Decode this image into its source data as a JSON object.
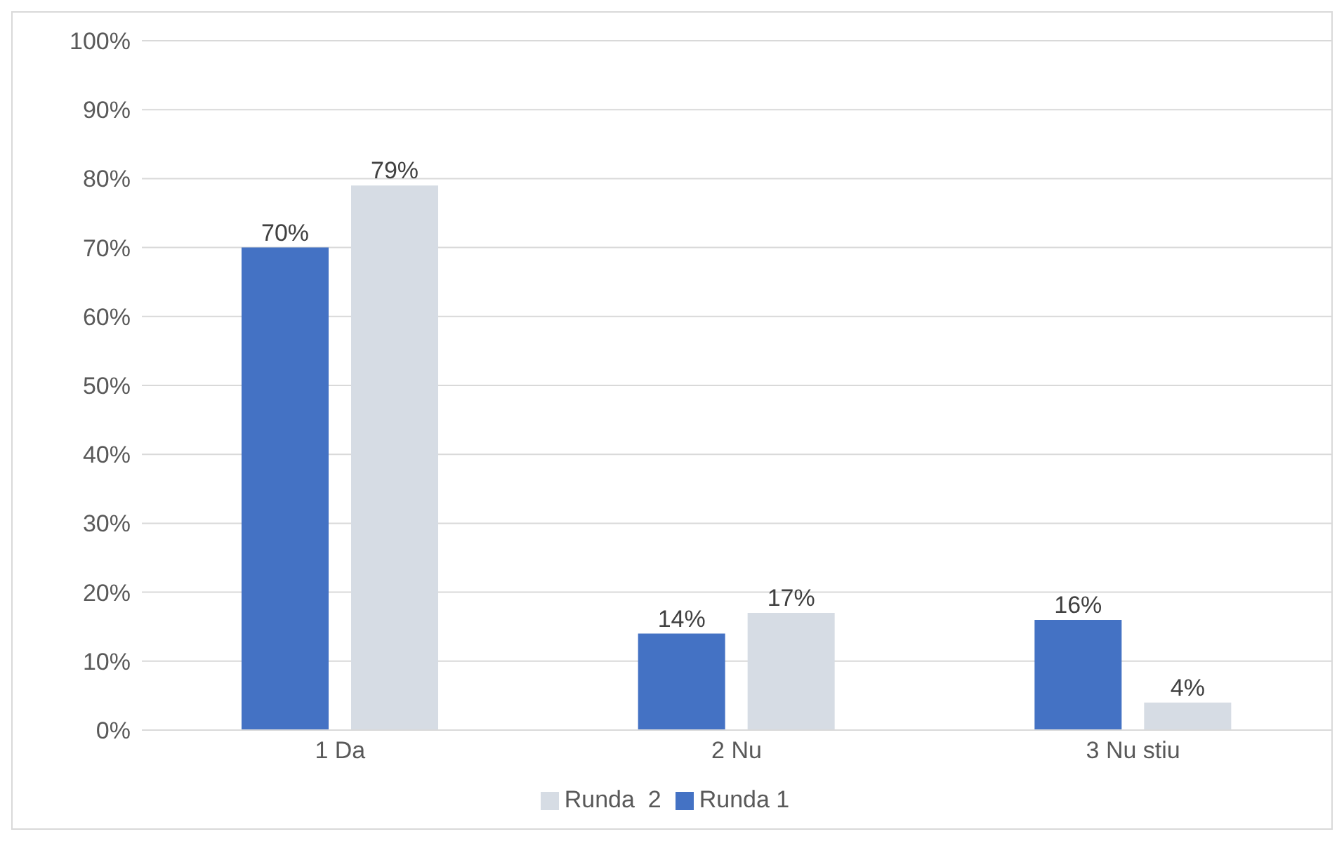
{
  "chart_data": {
    "type": "bar",
    "categories": [
      "1 Da",
      "2 Nu",
      "3 Nu stiu"
    ],
    "series": [
      {
        "name": "Runda 1",
        "color": "#4472c4",
        "values": [
          70,
          14,
          16
        ],
        "value_labels": [
          "70%",
          "14%",
          "16%"
        ]
      },
      {
        "name": "Runda  2",
        "color": "#d6dce4",
        "values": [
          79,
          17,
          4
        ],
        "value_labels": [
          "79%",
          "17%",
          "4%"
        ]
      }
    ],
    "ylim": [
      0,
      100
    ],
    "yticks": [
      {
        "value": 0,
        "label": "0%"
      },
      {
        "value": 10,
        "label": "10%"
      },
      {
        "value": 20,
        "label": "20%"
      },
      {
        "value": 30,
        "label": "30%"
      },
      {
        "value": 40,
        "label": "40%"
      },
      {
        "value": 50,
        "label": "50%"
      },
      {
        "value": 60,
        "label": "60%"
      },
      {
        "value": 70,
        "label": "70%"
      },
      {
        "value": 80,
        "label": "80%"
      },
      {
        "value": 90,
        "label": "90%"
      },
      {
        "value": 100,
        "label": "100%"
      }
    ],
    "grid": "y",
    "legend": "bottom"
  }
}
